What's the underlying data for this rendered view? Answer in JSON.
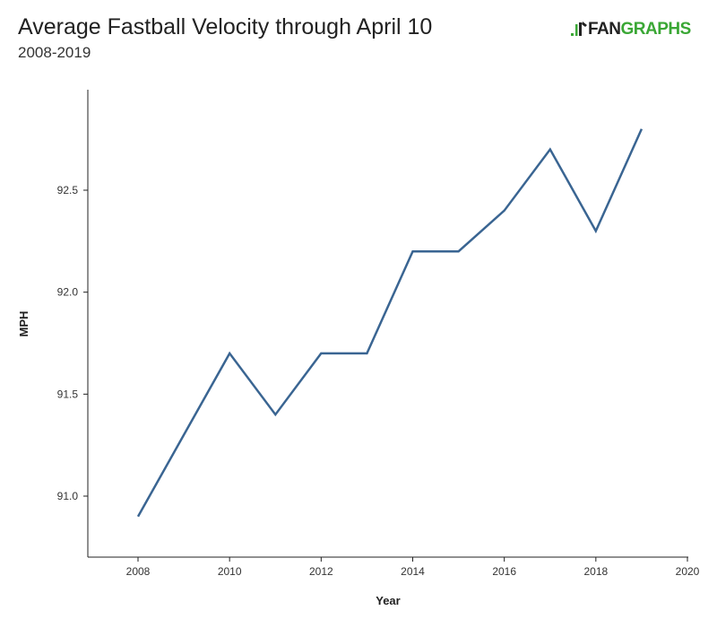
{
  "header": {
    "title": "Average Fastball Velocity through April 10",
    "subtitle": "2008-2019",
    "logo": {
      "icon": "fangraphs-logo-icon",
      "text_part1": "FAN",
      "text_part2": "GRAPHS",
      "brand_color": "#3aa735"
    }
  },
  "chart_data": {
    "type": "line",
    "title": "Average Fastball Velocity through April 10",
    "subtitle": "2008-2019",
    "xlabel": "Year",
    "ylabel": "MPH",
    "xlim": [
      2007,
      2020
    ],
    "ylim": [
      90.72,
      93.02
    ],
    "x_ticks": [
      2008,
      2010,
      2012,
      2014,
      2016,
      2018,
      2020
    ],
    "y_ticks": [
      91.0,
      91.5,
      92.0,
      92.5
    ],
    "grid": false,
    "line_color": "#3a6592",
    "series": [
      {
        "x": [
          2008,
          2009,
          2010,
          2011,
          2012,
          2013,
          2014,
          2015,
          2016,
          2017,
          2018,
          2019
        ],
        "values": [
          90.9,
          91.3,
          91.7,
          91.4,
          91.7,
          91.7,
          92.2,
          92.2,
          92.4,
          92.7,
          92.3,
          92.8
        ]
      }
    ]
  }
}
